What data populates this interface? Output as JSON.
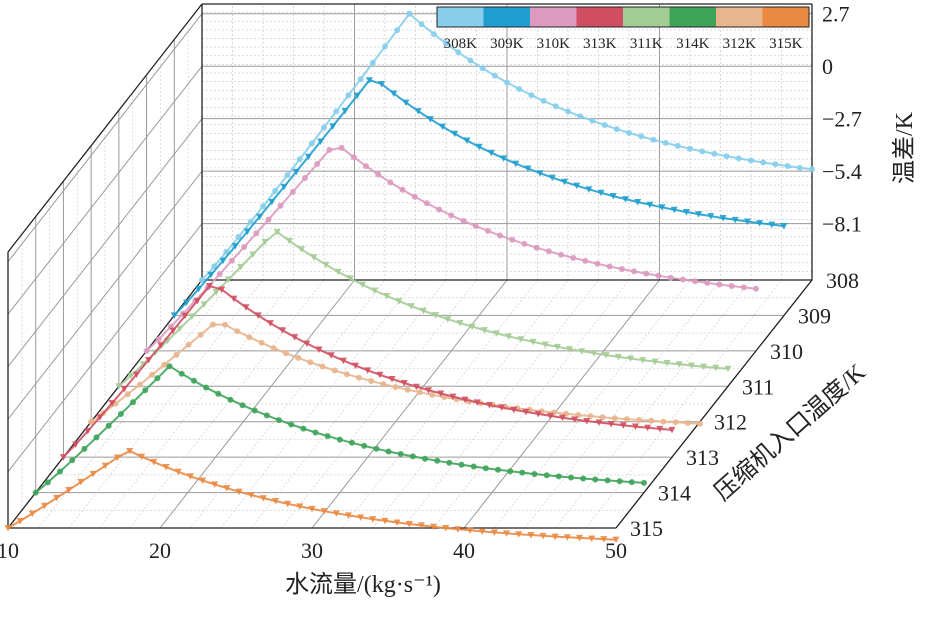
{
  "chart_data": {
    "type": "line",
    "variant": "3d-waterfall",
    "xlabel": "水流量/(kg·s⁻¹)",
    "ylabel": "压缩机入口温度/K",
    "zlabel": "温差/K",
    "x_ticks": [
      "10",
      "20",
      "30",
      "40",
      "50"
    ],
    "y_ticks": [
      "308",
      "309",
      "310",
      "311",
      "312",
      "313",
      "314",
      "315"
    ],
    "z_ticks": [
      "2.7",
      "0",
      "−2.7",
      "−5.4",
      "−8.1"
    ],
    "xlim": [
      10,
      50
    ],
    "zlim": [
      -11,
      3.2
    ],
    "legend_position": "top-right",
    "series": [
      {
        "name": "308K",
        "temp": 308,
        "color": "#87ceeb",
        "peak_x": 23.6,
        "peak_z": 2.7,
        "end_z": -5.3
      },
      {
        "name": "309K",
        "temp": 309,
        "color": "#1f9fcf",
        "peak_x": 23.0,
        "peak_z": 1.3,
        "end_z": -6.4
      },
      {
        "name": "310K",
        "temp": 310,
        "color": "#dc9ac0",
        "peak_x": 22.4,
        "peak_z": -0.3,
        "end_z": -7.8
      },
      {
        "name": "311K",
        "temp": 311,
        "color": "#a3cb94",
        "peak_x": 20.3,
        "peak_z": -3.0,
        "end_z": -10.1
      },
      {
        "name": "312K",
        "temp": 312,
        "color": "#e8b58d",
        "peak_x": 18.3,
        "peak_z": -5.8,
        "end_z": -11.1
      },
      {
        "name": "313K",
        "temp": 313,
        "color": "#cf4f60",
        "peak_x": 19.8,
        "peak_z": -2.0,
        "end_z": -9.6
      },
      {
        "name": "314K",
        "temp": 314,
        "color": "#3ea45a",
        "peak_x": 18.8,
        "peak_z": -4.5,
        "end_z": -10.5
      },
      {
        "name": "315K",
        "temp": 315,
        "color": "#ea8a42",
        "peak_x": 17.9,
        "peak_z": -7.0,
        "end_z": -11.6
      }
    ],
    "legend_order": [
      "308K",
      "309K",
      "310K",
      "313K",
      "311K",
      "314K",
      "312K",
      "315K"
    ]
  }
}
